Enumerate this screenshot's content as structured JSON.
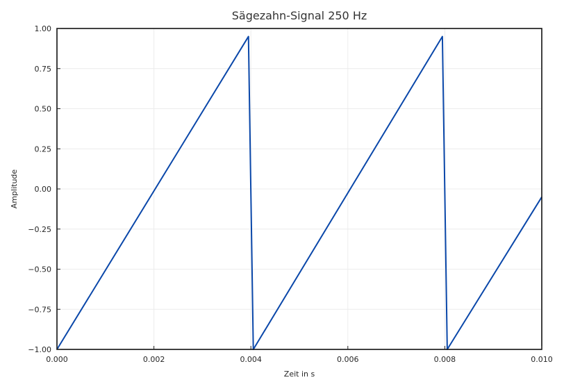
{
  "chart_data": {
    "type": "line",
    "title": "Sägezahn-Signal 250 Hz",
    "xlabel": "Zeit in s",
    "ylabel": "Amplitude",
    "xlim": [
      0.0,
      0.01
    ],
    "ylim": [
      -1.0,
      1.0
    ],
    "x_ticks": [
      "0.000",
      "0.002",
      "0.004",
      "0.006",
      "0.008",
      "0.010"
    ],
    "y_ticks": [
      "1.00",
      "0.75",
      "0.50",
      "0.25",
      "0.00",
      "−0.25",
      "−0.50",
      "−0.75",
      "−1.00"
    ],
    "grid": true,
    "series": [
      {
        "color": "#0a47a9",
        "x": [
          0.0,
          0.00395,
          0.00405,
          0.00795,
          0.00805,
          0.01
        ],
        "y": [
          -1.0,
          0.95,
          -1.0,
          0.95,
          -1.0,
          -0.05
        ]
      }
    ]
  }
}
